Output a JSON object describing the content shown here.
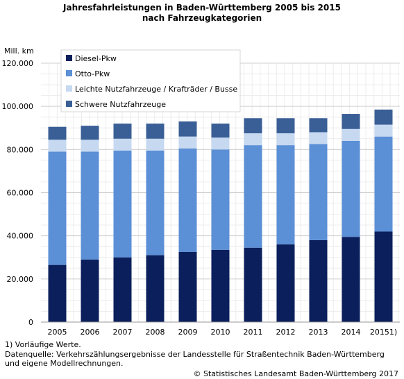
{
  "chart_data": {
    "type": "bar",
    "stacked": true,
    "title_lines": [
      "Jahresfahrleistungen in Baden-Württemberg 2005 bis 2015",
      "nach Fahrzeugkategorien"
    ],
    "unit_label": "Mill. km",
    "categories": [
      "2005",
      "2006",
      "2007",
      "2008",
      "2009",
      "2010",
      "2011",
      "2012",
      "2013",
      "2014",
      "20151)"
    ],
    "y_ticks": [
      "0",
      "20.000",
      "40.000",
      "60.000",
      "80.000",
      "100.000",
      "120.000"
    ],
    "ylim": [
      0,
      120000
    ],
    "grid": true,
    "legend_position": "top-left",
    "series": [
      {
        "name": "Diesel-Pkw",
        "color": "#0b1f5c",
        "values": [
          26500,
          29000,
          30000,
          31000,
          32500,
          33500,
          34500,
          36000,
          38000,
          39500,
          42000
        ]
      },
      {
        "name": "Otto-Pkw",
        "color": "#5b8fd6",
        "values": [
          52500,
          50000,
          49500,
          48500,
          48000,
          46500,
          47500,
          46000,
          44500,
          44500,
          44000
        ]
      },
      {
        "name": "Leichte Nutzfahrzeuge / Krafträder / Busse",
        "color": "#c6d9f1",
        "values": [
          5500,
          5500,
          5500,
          5500,
          5500,
          5500,
          5500,
          5500,
          5500,
          5500,
          5500
        ]
      },
      {
        "name": "Schwere Nutzfahrzeuge",
        "color": "#3a5f96",
        "values": [
          6000,
          6500,
          7000,
          7000,
          7000,
          6500,
          7000,
          7000,
          6500,
          7000,
          7000
        ]
      }
    ]
  },
  "footer": {
    "note": "1) Vorläufige Werte.",
    "source_line1": "Datenquelle: Verkehrszählungsergebnisse der Landesstelle für Straßentechnik Baden-Württemberg",
    "source_line2": "und eigene Modellrechnungen.",
    "copyright": "© Statistisches Landesamt Baden-Württemberg 2017"
  }
}
